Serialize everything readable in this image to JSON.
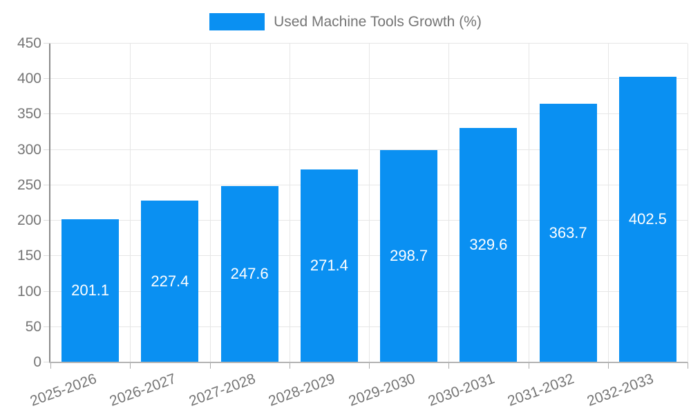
{
  "legend": {
    "label": "Used Machine Tools Growth (%)"
  },
  "chart_data": {
    "type": "bar",
    "title": "",
    "xlabel": "",
    "ylabel": "",
    "categories": [
      "2025-2026",
      "2026-2027",
      "2027-2028",
      "2028-2029",
      "2029-2030",
      "2030-2031",
      "2031-2032",
      "2032-2033"
    ],
    "series": [
      {
        "name": "Used Machine Tools Growth (%)",
        "values": [
          201.1,
          227.4,
          247.6,
          271.4,
          298.7,
          329.6,
          363.7,
          402.5
        ]
      }
    ],
    "value_labels": [
      "201.1",
      "227.4",
      "247.6",
      "271.4",
      "298.7",
      "329.6",
      "363.7",
      "402.5"
    ],
    "ylim": [
      0,
      450
    ],
    "yticks": [
      0,
      50,
      100,
      150,
      200,
      250,
      300,
      350,
      400,
      450
    ],
    "grid": true,
    "legend_position": "top",
    "colors": {
      "bar": "#0a90f2",
      "value_label": "#ffffff",
      "axis_text": "#757575",
      "gridline": "#e6e6e6",
      "y_axis_line": "#8a8a8a",
      "x_axis_line": "#b3b3b3"
    }
  }
}
